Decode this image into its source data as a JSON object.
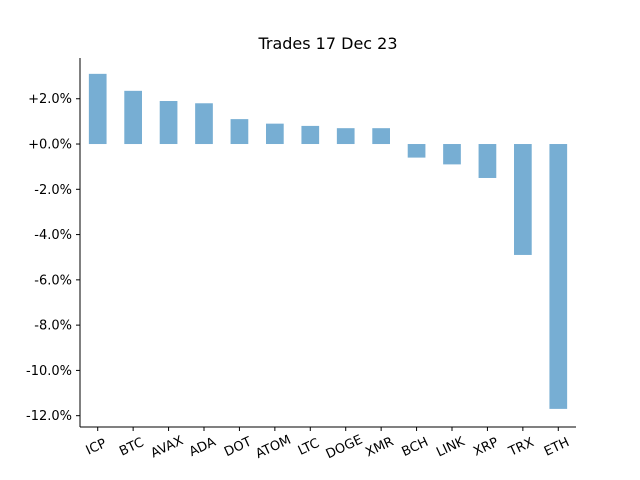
{
  "chart_data": {
    "type": "bar",
    "title": "Trades 17 Dec 23",
    "xlabel": "",
    "ylabel": "",
    "categories": [
      "ICP",
      "BTC",
      "AVAX",
      "ADA",
      "DOT",
      "ATOM",
      "LTC",
      "DOGE",
      "XMR",
      "BCH",
      "LINK",
      "XRP",
      "TRX",
      "ETH"
    ],
    "values": [
      3.1,
      2.35,
      1.9,
      1.8,
      1.1,
      0.9,
      0.8,
      0.7,
      0.7,
      -0.6,
      -0.9,
      -1.5,
      -4.9,
      -11.7
    ],
    "ylim": [
      -12.5,
      3.8
    ],
    "yticks": [
      2,
      0,
      -2,
      -4,
      -6,
      -8,
      -10,
      -12
    ],
    "ytick_labels": [
      "+2.0%",
      "+0.0%",
      "-2.0%",
      "-4.0%",
      "-6.0%",
      "-8.0%",
      "-10.0%",
      "-12.0%"
    ],
    "bar_color": "#77aed3",
    "grid": false,
    "x_tick_rotation": -25
  }
}
